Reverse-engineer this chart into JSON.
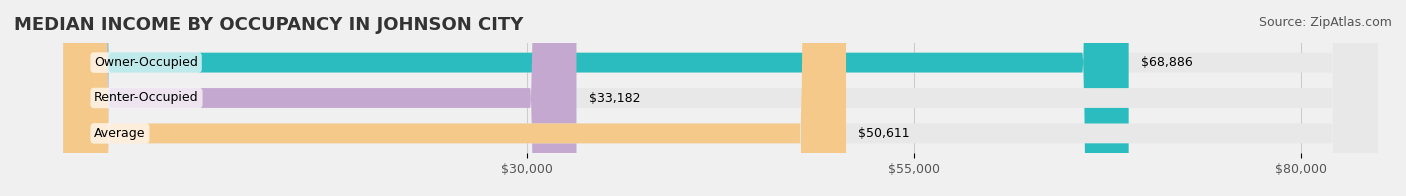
{
  "title": "MEDIAN INCOME BY OCCUPANCY IN JOHNSON CITY",
  "source": "Source: ZipAtlas.com",
  "categories": [
    "Owner-Occupied",
    "Renter-Occupied",
    "Average"
  ],
  "values": [
    68886,
    33182,
    50611
  ],
  "labels": [
    "$68,886",
    "$33,182",
    "$50,611"
  ],
  "bar_colors": [
    "#2bbcbf",
    "#c4a8d0",
    "#f5c98a"
  ],
  "bar_edge_colors": [
    "#2bbcbf",
    "#c4a8d0",
    "#f5c98a"
  ],
  "background_color": "#f0f0f0",
  "bar_bg_color": "#e8e8e8",
  "xlim": [
    0,
    85000
  ],
  "xticks": [
    30000,
    55000,
    80000
  ],
  "xtick_labels": [
    "$30,000",
    "$55,000",
    "$80,000"
  ],
  "title_fontsize": 13,
  "source_fontsize": 9,
  "label_fontsize": 9,
  "bar_height": 0.55
}
